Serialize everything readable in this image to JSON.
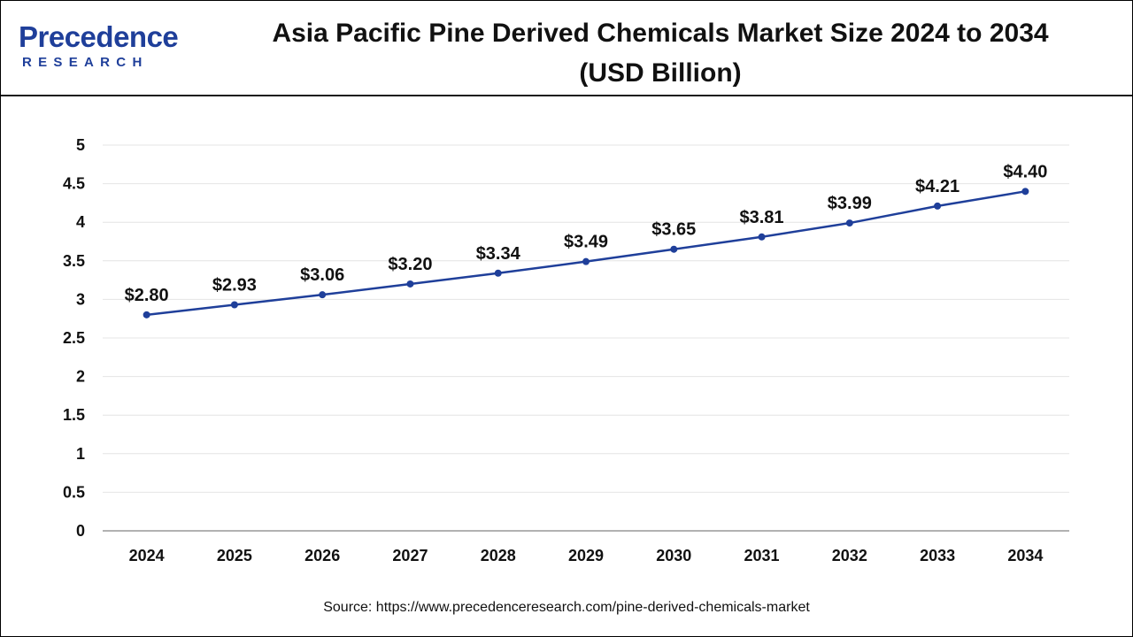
{
  "header": {
    "logo_word": "Precedence",
    "logo_sub": "RESEARCH",
    "title_line1": "Asia Pacific Pine Derived Chemicals Market Size 2024 to 2034",
    "title_line2": "(USD Billion)"
  },
  "source": "Source: https://www.precedenceresearch.com/pine-derived-chemicals-market",
  "colors": {
    "line": "#1f3f9a",
    "brand": "#1f3f9a",
    "grid": "#e4e4e4",
    "axis": "#999999"
  },
  "chart_data": {
    "type": "line",
    "title": "Asia Pacific Pine Derived Chemicals Market Size 2024 to 2034 (USD Billion)",
    "xlabel": "",
    "ylabel": "",
    "categories": [
      "2024",
      "2025",
      "2026",
      "2027",
      "2028",
      "2029",
      "2030",
      "2031",
      "2032",
      "2033",
      "2034"
    ],
    "series": [
      {
        "values": [
          2.8,
          2.93,
          3.06,
          3.2,
          3.34,
          3.49,
          3.65,
          3.81,
          3.99,
          4.21,
          4.4
        ],
        "labels": [
          "$2.80",
          "$2.93",
          "$3.06",
          "$3.20",
          "$3.34",
          "$3.49",
          "$3.65",
          "$3.81",
          "$3.99",
          "$4.21",
          "$4.40"
        ]
      }
    ],
    "ylim": [
      0,
      5
    ],
    "yticks": [
      "0",
      "0.5",
      "1",
      "1.5",
      "2",
      "2.5",
      "3",
      "3.5",
      "4",
      "4.5",
      "5"
    ],
    "grid": true,
    "legend": "none"
  }
}
